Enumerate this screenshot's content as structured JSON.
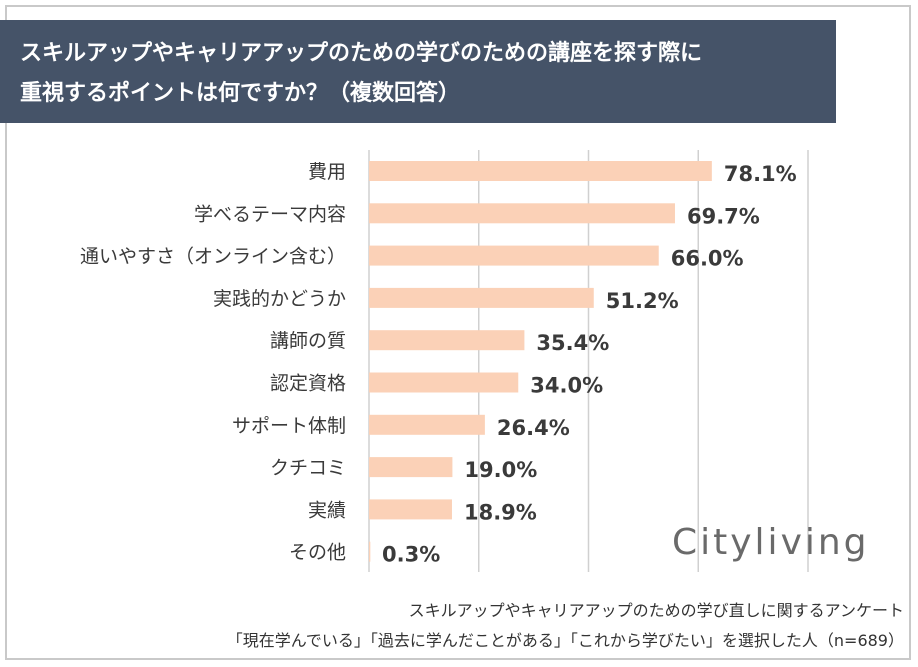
{
  "title": {
    "line1": "スキルアップやキャリアアップのための学びのための講座を探す際に",
    "line2": "重視するポイントは何ですか？（複数回答）"
  },
  "logo": "Cityliving",
  "footnote": {
    "line1": "スキルアップやキャリアアップのための学び直しに関するアンケート",
    "line2": "「現在学んでいる」「過去に学んだことがある」「これから学びたい」を選択した人（n=689）"
  },
  "colors": {
    "bar": "#fbd1b7",
    "header": "#455368",
    "grid": "#d0d0d0"
  },
  "chart_data": {
    "type": "bar",
    "orientation": "horizontal",
    "title": "スキルアップやキャリアアップのための学びのための講座を探す際に重視するポイントは何ですか？（複数回答）",
    "categories": [
      "費用",
      "学べるテーマ内容",
      "通いやすさ（オンライン含む）",
      "実践的かどうか",
      "講師の質",
      "認定資格",
      "サポート体制",
      "クチコミ",
      "実績",
      "その他"
    ],
    "values": [
      78.1,
      69.7,
      66.0,
      51.2,
      35.4,
      34.0,
      26.4,
      19.0,
      18.9,
      0.3
    ],
    "labels": [
      "78.1%",
      "69.7%",
      "66.0%",
      "51.2%",
      "35.4%",
      "34.0%",
      "26.4%",
      "19.0%",
      "18.9%",
      "0.3%"
    ],
    "unit": "%",
    "xlim": [
      0,
      100
    ],
    "gridlines": [
      0,
      25,
      50,
      75,
      100
    ]
  }
}
